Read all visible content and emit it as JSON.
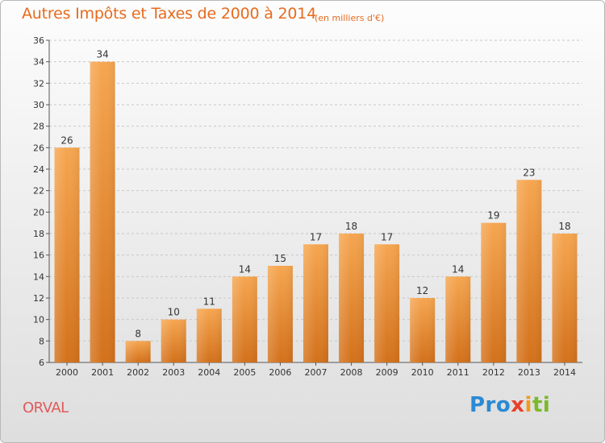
{
  "header": {
    "title": "Autres Impôts et Taxes de 2000 à 2014",
    "subtitle": "(en milliers d'€)"
  },
  "footer": {
    "town": "ORVAL",
    "logo_parts": [
      "Pro",
      "x",
      "i",
      "ti"
    ]
  },
  "colors": {
    "title": "#e66b1e",
    "bar_top": "#f5a44e",
    "bar_bottom": "#d4721c",
    "town": "#e05a5a"
  },
  "chart_data": {
    "type": "bar",
    "title": "Autres Impôts et Taxes de 2000 à 2014",
    "subtitle": "(en milliers d'€)",
    "categories": [
      "2000",
      "2001",
      "2002",
      "2003",
      "2004",
      "2005",
      "2006",
      "2007",
      "2008",
      "2009",
      "2010",
      "2011",
      "2012",
      "2013",
      "2014"
    ],
    "values": [
      26,
      34,
      8,
      10,
      11,
      14,
      15,
      17,
      18,
      17,
      12,
      14,
      19,
      23,
      18
    ],
    "ylim": [
      6,
      36
    ],
    "yticks": [
      6,
      8,
      10,
      12,
      14,
      16,
      18,
      20,
      22,
      24,
      26,
      28,
      30,
      32,
      34,
      36
    ],
    "grid": true,
    "xlabel": "",
    "ylabel": ""
  }
}
